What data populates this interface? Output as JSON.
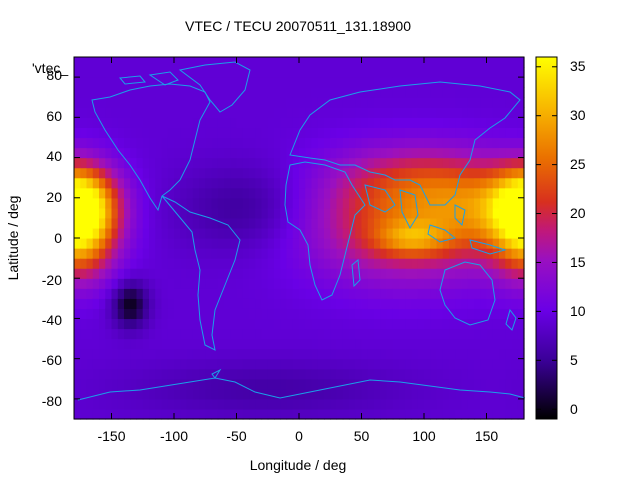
{
  "chart_data": {
    "type": "heatmap",
    "title": "VTEC / TECU 20070511_131.18900",
    "xlabel": "Longitude / deg",
    "ylabel": "Latitude / deg",
    "legend_entry": "'vtec_",
    "xlim": [
      -180,
      180
    ],
    "ylim": [
      -90,
      90
    ],
    "zlim": [
      -1,
      36
    ],
    "x_ticks": [
      -150,
      -100,
      -50,
      0,
      50,
      100,
      150
    ],
    "y_ticks": [
      -80,
      -60,
      -40,
      -20,
      0,
      20,
      40,
      60,
      80
    ],
    "colorbar_ticks": [
      0,
      5,
      10,
      15,
      20,
      25,
      30,
      35
    ],
    "x_tick_labels": [
      "-150",
      "-100",
      "-50",
      "0",
      "50",
      "100",
      "150"
    ],
    "y_tick_labels": [
      "-80",
      "-60",
      "-40",
      "-20",
      "0",
      "20",
      "40",
      "60",
      "80"
    ],
    "colorbar_tick_labels": [
      "0",
      "5",
      "10",
      "15",
      "20",
      "25",
      "30",
      "35"
    ],
    "palette": "black-blue-purple-red-orange-yellow",
    "grid": false,
    "legend_position": "top-left",
    "colorbar_position": "right",
    "grid_resolution_deg": 5,
    "background_level": 9,
    "features": [
      {
        "lon": -175,
        "lat": 17,
        "amplitude": 25,
        "lon_sigma": 20,
        "lat_sigma": 13
      },
      {
        "lon": -175,
        "lat": -3,
        "amplitude": 13,
        "lon_sigma": 20,
        "lat_sigma": 14
      },
      {
        "lon": 85,
        "lat": 8,
        "amplitude": 14,
        "lon_sigma": 55,
        "lat_sigma": 20
      },
      {
        "lon": 90,
        "lat": 0,
        "amplitude": 8,
        "lon_sigma": 20,
        "lat_sigma": 6
      },
      {
        "lon": 150,
        "lat": 15,
        "amplitude": 9,
        "lon_sigma": 35,
        "lat_sigma": 15
      },
      {
        "lon": 95,
        "lat": 30,
        "amplitude": 6,
        "lon_sigma": 45,
        "lat_sigma": 12
      },
      {
        "lon": -135,
        "lat": -33,
        "amplitude": -9,
        "lon_sigma": 10,
        "lat_sigma": 8
      },
      {
        "lon": -40,
        "lat": 15,
        "amplitude": -4,
        "lon_sigma": 40,
        "lat_sigma": 15
      },
      {
        "lon": -25,
        "lat": -75,
        "amplitude": -3,
        "lon_sigma": 80,
        "lat_sigma": 10
      }
    ]
  }
}
